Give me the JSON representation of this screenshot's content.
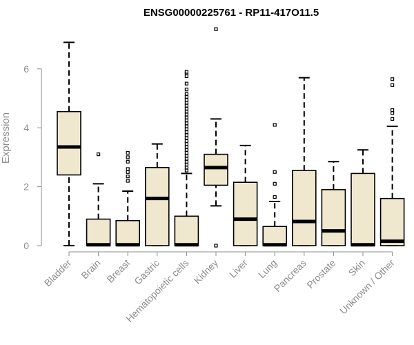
{
  "chart_data": {
    "type": "box",
    "title": "ENSG00000225761 - RP11-417O11.5",
    "xlabel": "",
    "ylabel": "Expression",
    "ylim": [
      0,
      7.3
    ],
    "yticks": [
      0,
      2,
      4,
      6
    ],
    "grid": false,
    "legend": "none",
    "box_fill": "#efe8ce",
    "box_stroke": "#000000",
    "categories": [
      "Bladder",
      "Brain",
      "Breast",
      "Gastric",
      "Hematopoietic cells",
      "Kidney",
      "Liver",
      "Lung",
      "Pancreas",
      "Prostate",
      "Skin",
      "Unknown / Other"
    ],
    "boxes": [
      {
        "min": 0.0,
        "q1": 2.4,
        "median": 3.35,
        "q3": 4.55,
        "max": 6.9,
        "outliers": []
      },
      {
        "min": 0.0,
        "q1": 0.0,
        "median": 0.03,
        "q3": 0.9,
        "max": 2.1,
        "outliers": [
          3.1
        ]
      },
      {
        "min": 0.0,
        "q1": 0.0,
        "median": 0.03,
        "q3": 0.85,
        "max": 1.85,
        "outliers": [
          2.2,
          2.35,
          2.5,
          2.6,
          2.85,
          3.0,
          3.15
        ]
      },
      {
        "min": 0.0,
        "q1": 0.0,
        "median": 1.6,
        "q3": 2.65,
        "max": 3.45,
        "outliers": []
      },
      {
        "min": 0.0,
        "q1": 0.0,
        "median": 0.03,
        "q3": 1.0,
        "max": 2.45,
        "outliers": [
          2.55,
          2.65,
          2.75,
          2.85,
          2.95,
          3.05,
          3.15,
          3.25,
          3.35,
          3.45,
          3.55,
          3.65,
          3.75,
          3.85,
          3.95,
          4.05,
          4.15,
          4.25,
          4.35,
          4.45,
          4.55,
          4.65,
          4.75,
          4.85,
          4.95,
          5.05,
          5.15,
          5.3,
          5.5,
          5.75,
          5.85,
          5.9
        ]
      },
      {
        "min": 1.35,
        "q1": 2.05,
        "median": 2.65,
        "q3": 3.1,
        "max": 4.3,
        "outliers": [
          0.0,
          7.35
        ]
      },
      {
        "min": 0.0,
        "q1": 0.0,
        "median": 0.9,
        "q3": 2.15,
        "max": 3.4,
        "outliers": []
      },
      {
        "min": 0.0,
        "q1": 0.0,
        "median": 0.03,
        "q3": 0.65,
        "max": 1.5,
        "outliers": [
          1.65,
          2.1,
          2.5,
          4.1
        ]
      },
      {
        "min": 0.0,
        "q1": 0.0,
        "median": 0.82,
        "q3": 2.55,
        "max": 5.7,
        "outliers": []
      },
      {
        "min": 0.0,
        "q1": 0.0,
        "median": 0.5,
        "q3": 1.9,
        "max": 2.85,
        "outliers": []
      },
      {
        "min": 0.0,
        "q1": 0.0,
        "median": 0.03,
        "q3": 2.45,
        "max": 3.25,
        "outliers": []
      },
      {
        "min": 0.0,
        "q1": 0.0,
        "median": 0.15,
        "q3": 1.6,
        "max": 4.05,
        "outliers": [
          4.3,
          4.5,
          4.6,
          5.45,
          5.65
        ]
      }
    ]
  }
}
